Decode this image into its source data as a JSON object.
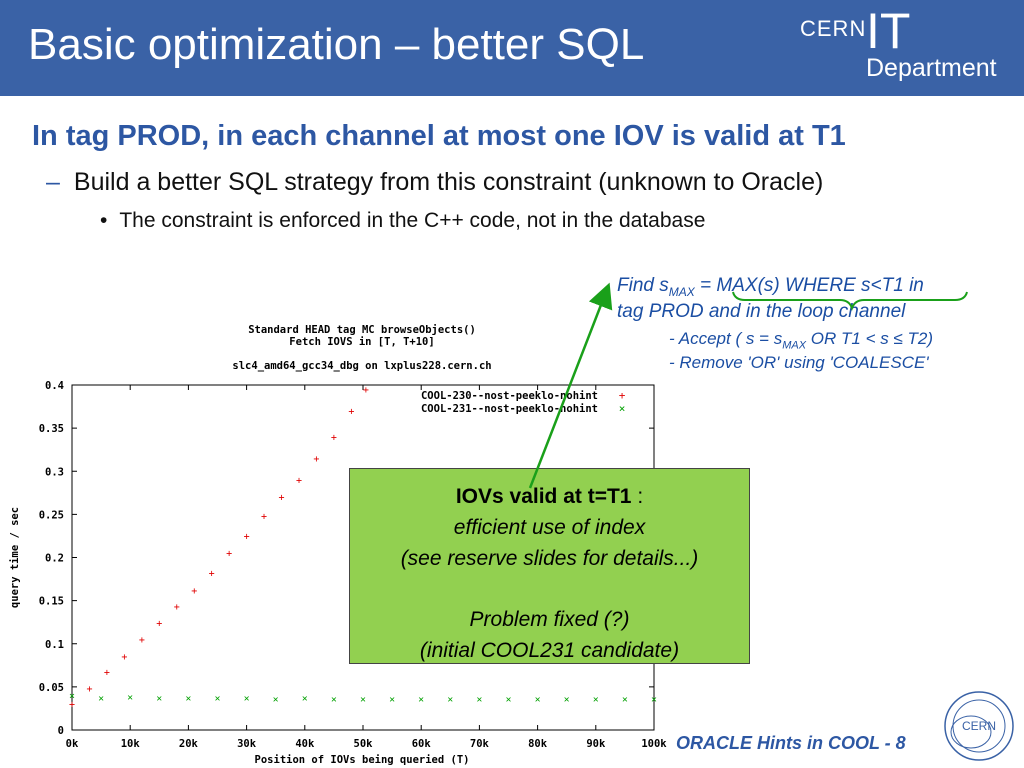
{
  "header": {
    "title": "Basic optimization – better SQL",
    "logo": {
      "cern": "CERN",
      "it": "IT",
      "department": "Department"
    },
    "bg_color": "#3a62a6"
  },
  "content": {
    "heading": "In tag PROD, in each channel at most one IOV is valid at T1",
    "bullet1": "Build a better SQL strategy from this constraint (unknown to Oracle)",
    "bullet1_marker": "–",
    "bullet2": "The constraint is enforced in the C++ code, not in the database",
    "bullet2_marker": "•"
  },
  "note": {
    "line1_a": "Find s",
    "line1_sub": "MAX",
    "line1_b": " = MAX(s) WHERE s<T1 in",
    "line2": "tag PROD and in the loop channel",
    "sub1_a": "- Accept ( s = s",
    "sub1_sub": "MAX",
    "sub1_b": " OR T1 < s ≤ T2)",
    "sub2": "- Remove 'OR' using 'COALESCE'"
  },
  "callout": {
    "line1_bold": "IOVs valid at t=T1",
    "line1_rest": " :",
    "line2": "efficient use of index",
    "line3": "(see reserve slides for details...)",
    "line4": "Problem fixed (?)",
    "line5": "(initial COOL231 candidate)"
  },
  "footer": {
    "text": "ORACLE Hints in COOL - 8",
    "logo_text": "CERN"
  },
  "chart_data": {
    "type": "scatter",
    "title_lines": [
      "Standard HEAD tag MC browseObjects()",
      "Fetch IOVS in [T, T+10]",
      "",
      "slc4_amd64_gcc34_dbg on lxplus228.cern.ch"
    ],
    "xlabel": "Position of IOVs being queried (T)",
    "ylabel": "query time / sec",
    "xlim": [
      0,
      100000
    ],
    "ylim": [
      0,
      0.4
    ],
    "x_ticks": [
      "0k",
      "10k",
      "20k",
      "30k",
      "40k",
      "50k",
      "60k",
      "70k",
      "80k",
      "90k",
      "100k"
    ],
    "y_ticks": [
      "0",
      "0.05",
      "0.1",
      "0.15",
      "0.2",
      "0.25",
      "0.3",
      "0.35",
      "0.4"
    ],
    "legend_position": "top-right",
    "series": [
      {
        "name": "COOL-230--nost-peeklo-nohint",
        "marker": "+",
        "color": "#e00000",
        "x": [
          0,
          3000,
          6000,
          9000,
          12000,
          15000,
          18000,
          21000,
          24000,
          27000,
          30000,
          33000,
          36000,
          39000,
          42000,
          45000,
          48000,
          50500
        ],
        "y": [
          0.03,
          0.048,
          0.067,
          0.085,
          0.105,
          0.124,
          0.143,
          0.162,
          0.182,
          0.205,
          0.225,
          0.248,
          0.27,
          0.29,
          0.315,
          0.34,
          0.37,
          0.395
        ]
      },
      {
        "name": "COOL-231--nost-peeklo-nohint",
        "marker": "×",
        "color": "#00a000",
        "x": [
          0,
          5000,
          10000,
          15000,
          20000,
          25000,
          30000,
          35000,
          40000,
          45000,
          50000,
          55000,
          60000,
          65000,
          70000,
          75000,
          80000,
          85000,
          90000,
          95000,
          100000
        ],
        "y": [
          0.04,
          0.037,
          0.038,
          0.037,
          0.037,
          0.037,
          0.037,
          0.036,
          0.037,
          0.036,
          0.036,
          0.036,
          0.036,
          0.036,
          0.036,
          0.036,
          0.036,
          0.036,
          0.036,
          0.036,
          0.036
        ]
      }
    ]
  }
}
